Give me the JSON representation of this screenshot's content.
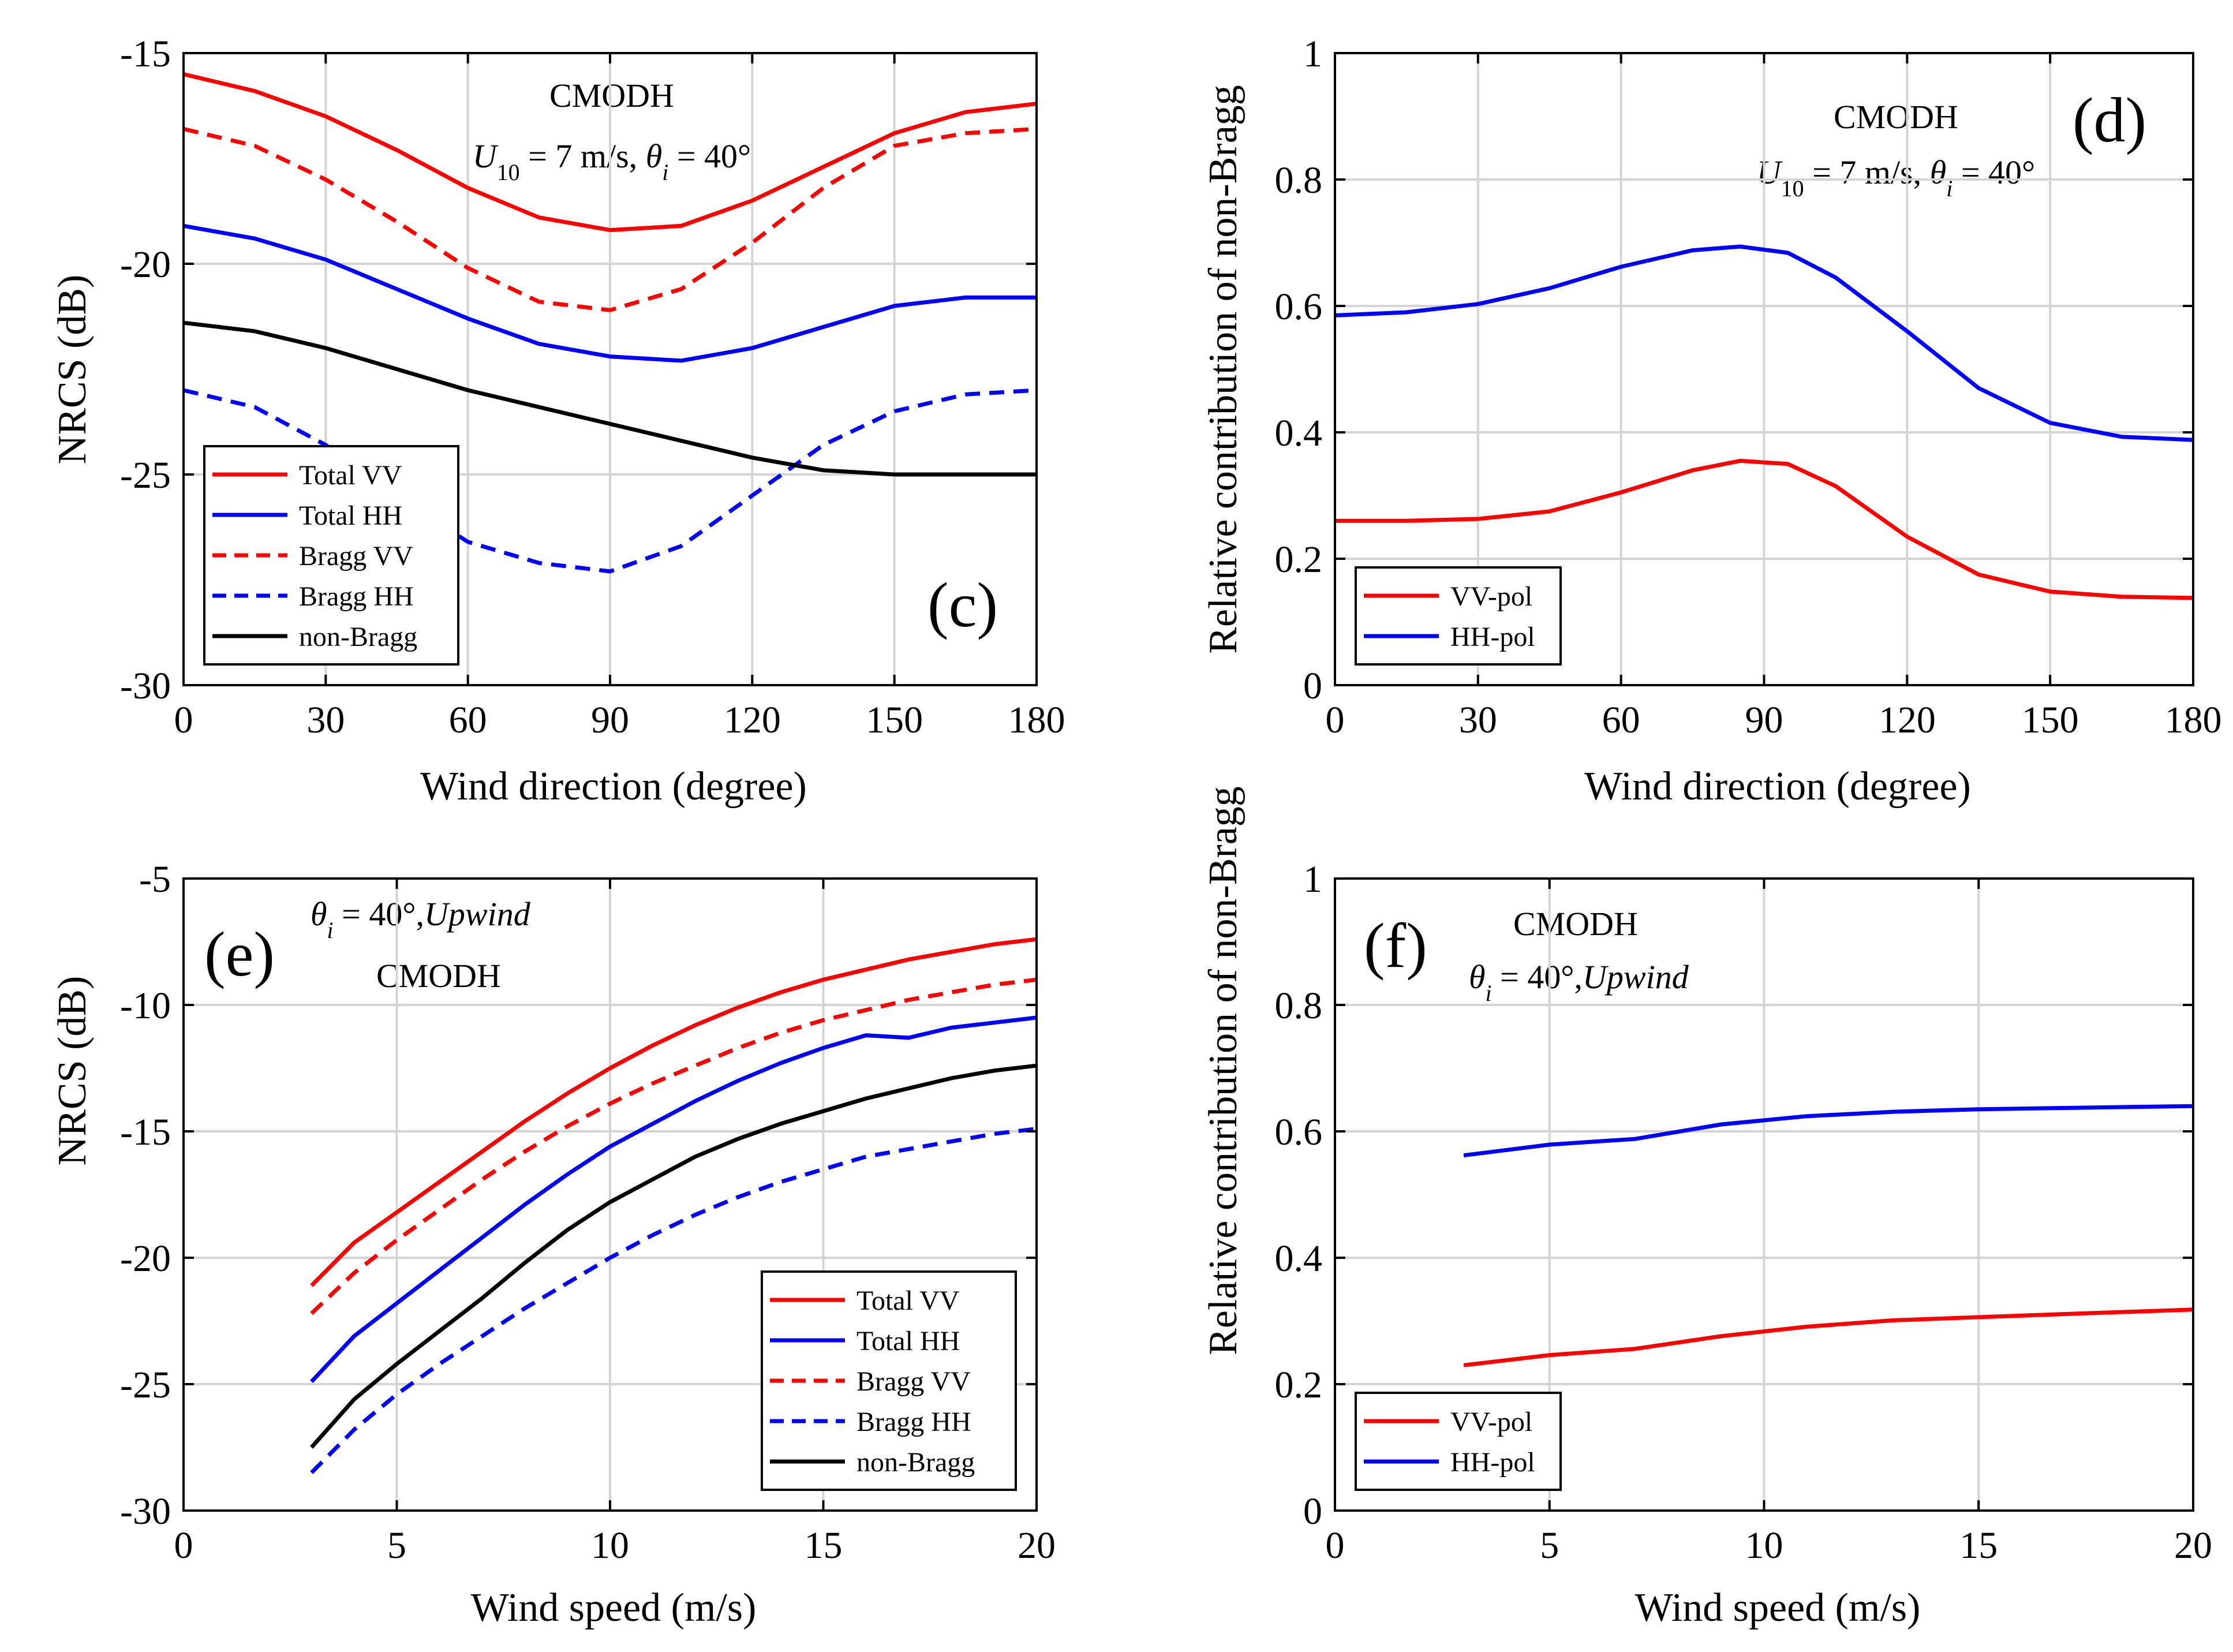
{
  "colors": {
    "red": "#ff0000",
    "blue": "#0000ff",
    "black": "#000000",
    "grid": "#d4d4d4"
  },
  "chart_data": [
    {
      "id": "c",
      "type": "line",
      "panel_label": "(c)",
      "annotation": {
        "line1": "CMODH",
        "u_symbol": "U",
        "u_subscript": "10",
        "u_rest": " = 7 m/s, ",
        "theta_symbol": "θ",
        "theta_subscript": "i",
        "theta_rest": " = 40°"
      },
      "xlabel": "Wind direction (degree)",
      "ylabel": "NRCS (dB)",
      "xlim": [
        0,
        180
      ],
      "ylim": [
        -30,
        -15
      ],
      "xticks": [
        0,
        30,
        60,
        90,
        120,
        150,
        180
      ],
      "yticks": [
        -30,
        -25,
        -20,
        -15
      ],
      "legend_position": "bottom-left",
      "series": [
        {
          "name": "Total VV",
          "color": "red",
          "dash": "solid",
          "x": [
            0,
            15,
            30,
            45,
            60,
            75,
            90,
            105,
            120,
            135,
            150,
            165,
            180
          ],
          "y": [
            -15.5,
            -15.9,
            -16.5,
            -17.3,
            -18.2,
            -18.9,
            -19.2,
            -19.1,
            -18.5,
            -17.7,
            -16.9,
            -16.4,
            -16.2
          ]
        },
        {
          "name": "Total HH",
          "color": "blue",
          "dash": "solid",
          "x": [
            0,
            15,
            30,
            45,
            60,
            75,
            90,
            105,
            120,
            135,
            150,
            165,
            180
          ],
          "y": [
            -19.1,
            -19.4,
            -19.9,
            -20.6,
            -21.3,
            -21.9,
            -22.2,
            -22.3,
            -22.0,
            -21.5,
            -21.0,
            -20.8,
            -20.8
          ]
        },
        {
          "name": "Bragg VV",
          "color": "red",
          "dash": "dashed",
          "x": [
            0,
            15,
            30,
            45,
            60,
            75,
            90,
            105,
            120,
            135,
            150,
            165,
            180
          ],
          "y": [
            -16.8,
            -17.2,
            -18.0,
            -19.0,
            -20.1,
            -20.9,
            -21.1,
            -20.6,
            -19.5,
            -18.2,
            -17.2,
            -16.9,
            -16.8
          ]
        },
        {
          "name": "Bragg HH",
          "color": "blue",
          "dash": "dashed",
          "x": [
            0,
            15,
            30,
            45,
            60,
            75,
            90,
            105,
            120,
            135,
            150,
            165,
            180
          ],
          "y": [
            -23.0,
            -23.4,
            -24.3,
            -25.5,
            -26.6,
            -27.1,
            -27.3,
            -26.7,
            -25.5,
            -24.3,
            -23.5,
            -23.1,
            -23.0
          ]
        },
        {
          "name": "non-Bragg",
          "color": "black",
          "dash": "solid",
          "x": [
            0,
            15,
            30,
            45,
            60,
            75,
            90,
            105,
            120,
            135,
            150,
            165,
            180
          ],
          "y": [
            -21.4,
            -21.6,
            -22.0,
            -22.5,
            -23.0,
            -23.4,
            -23.8,
            -24.2,
            -24.6,
            -24.9,
            -25.0,
            -25.0,
            -25.0
          ]
        }
      ]
    },
    {
      "id": "d",
      "type": "line",
      "panel_label": "(d)",
      "annotation": {
        "line1": "CMODH",
        "u_symbol": "U",
        "u_subscript": "10",
        "u_rest": " = 7 m/s, ",
        "theta_symbol": "θ",
        "theta_subscript": "i",
        "theta_rest": " = 40°"
      },
      "xlabel": "Wind direction (degree)",
      "ylabel": "Relative contribution of non-Bragg",
      "xlim": [
        0,
        180
      ],
      "ylim": [
        0,
        1
      ],
      "xticks": [
        0,
        30,
        60,
        90,
        120,
        150,
        180
      ],
      "yticks": [
        0,
        0.2,
        0.4,
        0.6,
        0.8,
        1
      ],
      "legend_position": "bottom-left",
      "series": [
        {
          "name": "VV-pol",
          "color": "red",
          "dash": "solid",
          "x": [
            0,
            15,
            30,
            45,
            60,
            75,
            85,
            95,
            105,
            120,
            135,
            150,
            165,
            180
          ],
          "y": [
            0.26,
            0.26,
            0.263,
            0.275,
            0.305,
            0.34,
            0.355,
            0.35,
            0.315,
            0.235,
            0.175,
            0.148,
            0.14,
            0.138
          ]
        },
        {
          "name": "HH-pol",
          "color": "blue",
          "dash": "solid",
          "x": [
            0,
            15,
            30,
            45,
            60,
            75,
            85,
            95,
            105,
            120,
            135,
            150,
            165,
            180
          ],
          "y": [
            0.585,
            0.59,
            0.603,
            0.628,
            0.662,
            0.688,
            0.694,
            0.684,
            0.645,
            0.56,
            0.47,
            0.415,
            0.393,
            0.388
          ]
        }
      ]
    },
    {
      "id": "e",
      "type": "line",
      "panel_label": "(e)",
      "annotation": {
        "theta_symbol": "θ",
        "theta_subscript": "i",
        "theta_rest": " = 40°,",
        "upwind": "Upwind",
        "line2": "CMODH"
      },
      "xlabel": "Wind speed (m/s)",
      "ylabel": "NRCS (dB)",
      "xlim": [
        0,
        20
      ],
      "ylim": [
        -30,
        -5
      ],
      "xticks": [
        0,
        5,
        10,
        15,
        20
      ],
      "yticks": [
        -30,
        -25,
        -20,
        -15,
        -10,
        -5
      ],
      "legend_position": "bottom-right",
      "series": [
        {
          "name": "Total VV",
          "color": "red",
          "dash": "solid",
          "x": [
            3,
            4,
            5,
            6,
            7,
            8,
            9,
            10,
            11,
            12,
            13,
            14,
            15,
            16,
            17,
            18,
            19,
            20
          ],
          "y": [
            -21.1,
            -19.4,
            -18.2,
            -17.0,
            -15.8,
            -14.6,
            -13.5,
            -12.5,
            -11.6,
            -10.8,
            -10.1,
            -9.5,
            -9.0,
            -8.6,
            -8.2,
            -7.9,
            -7.6,
            -7.4
          ]
        },
        {
          "name": "Total HH",
          "color": "blue",
          "dash": "solid",
          "x": [
            3,
            4,
            5,
            6,
            7,
            8,
            9,
            10,
            11,
            12,
            13,
            14,
            15,
            16,
            17,
            18,
            19,
            20
          ],
          "y": [
            -24.9,
            -23.1,
            -21.8,
            -20.5,
            -19.2,
            -17.9,
            -16.7,
            -15.6,
            -14.7,
            -13.8,
            -13.0,
            -12.3,
            -11.7,
            -11.2,
            -11.3,
            -10.9,
            -10.7,
            -10.5
          ]
        },
        {
          "name": "Bragg VV",
          "color": "red",
          "dash": "dashed",
          "x": [
            3,
            4,
            5,
            6,
            7,
            8,
            9,
            10,
            11,
            12,
            13,
            14,
            15,
            16,
            17,
            18,
            19,
            20
          ],
          "y": [
            -22.2,
            -20.6,
            -19.3,
            -18.1,
            -16.9,
            -15.8,
            -14.8,
            -13.9,
            -13.1,
            -12.4,
            -11.7,
            -11.1,
            -10.6,
            -10.2,
            -9.8,
            -9.5,
            -9.2,
            -9.0
          ]
        },
        {
          "name": "Bragg HH",
          "color": "blue",
          "dash": "dashed",
          "x": [
            3,
            4,
            5,
            6,
            7,
            8,
            9,
            10,
            11,
            12,
            13,
            14,
            15,
            16,
            17,
            18,
            19,
            20
          ],
          "y": [
            -28.5,
            -26.8,
            -25.4,
            -24.2,
            -23.1,
            -22.0,
            -21.0,
            -20.0,
            -19.1,
            -18.3,
            -17.6,
            -17.0,
            -16.5,
            -16.0,
            -15.7,
            -15.4,
            -15.1,
            -14.9
          ]
        },
        {
          "name": "non-Bragg",
          "color": "black",
          "dash": "solid",
          "x": [
            3,
            4,
            5,
            6,
            7,
            8,
            9,
            10,
            11,
            12,
            13,
            14,
            15,
            16,
            17,
            18,
            19,
            20
          ],
          "y": [
            -27.5,
            -25.6,
            -24.2,
            -22.9,
            -21.6,
            -20.2,
            -18.9,
            -17.8,
            -16.9,
            -16.0,
            -15.3,
            -14.7,
            -14.2,
            -13.7,
            -13.3,
            -12.9,
            -12.6,
            -12.4
          ]
        }
      ]
    },
    {
      "id": "f",
      "type": "line",
      "panel_label": "(f)",
      "annotation": {
        "line1": "CMODH",
        "theta_symbol": "θ",
        "theta_subscript": "i",
        "theta_rest": " = 40°,",
        "upwind": "Upwind"
      },
      "xlabel": "Wind speed (m/s)",
      "ylabel": "Relative contribution of non-Bragg",
      "xlim": [
        0,
        20
      ],
      "ylim": [
        0,
        1
      ],
      "xticks": [
        0,
        5,
        10,
        15,
        20
      ],
      "yticks": [
        0,
        0.2,
        0.4,
        0.6,
        0.8,
        1
      ],
      "legend_position": "bottom-left",
      "series": [
        {
          "name": "VV-pol",
          "color": "red",
          "dash": "solid",
          "x": [
            3,
            5,
            7,
            9,
            11,
            13,
            15,
            17,
            20
          ],
          "y": [
            0.23,
            0.246,
            0.256,
            0.276,
            0.291,
            0.301,
            0.306,
            0.311,
            0.318
          ]
        },
        {
          "name": "HH-pol",
          "color": "blue",
          "dash": "solid",
          "x": [
            3,
            5,
            7,
            9,
            11,
            13,
            15,
            17,
            20
          ],
          "y": [
            0.562,
            0.579,
            0.588,
            0.611,
            0.624,
            0.631,
            0.635,
            0.637,
            0.64
          ]
        }
      ]
    }
  ]
}
